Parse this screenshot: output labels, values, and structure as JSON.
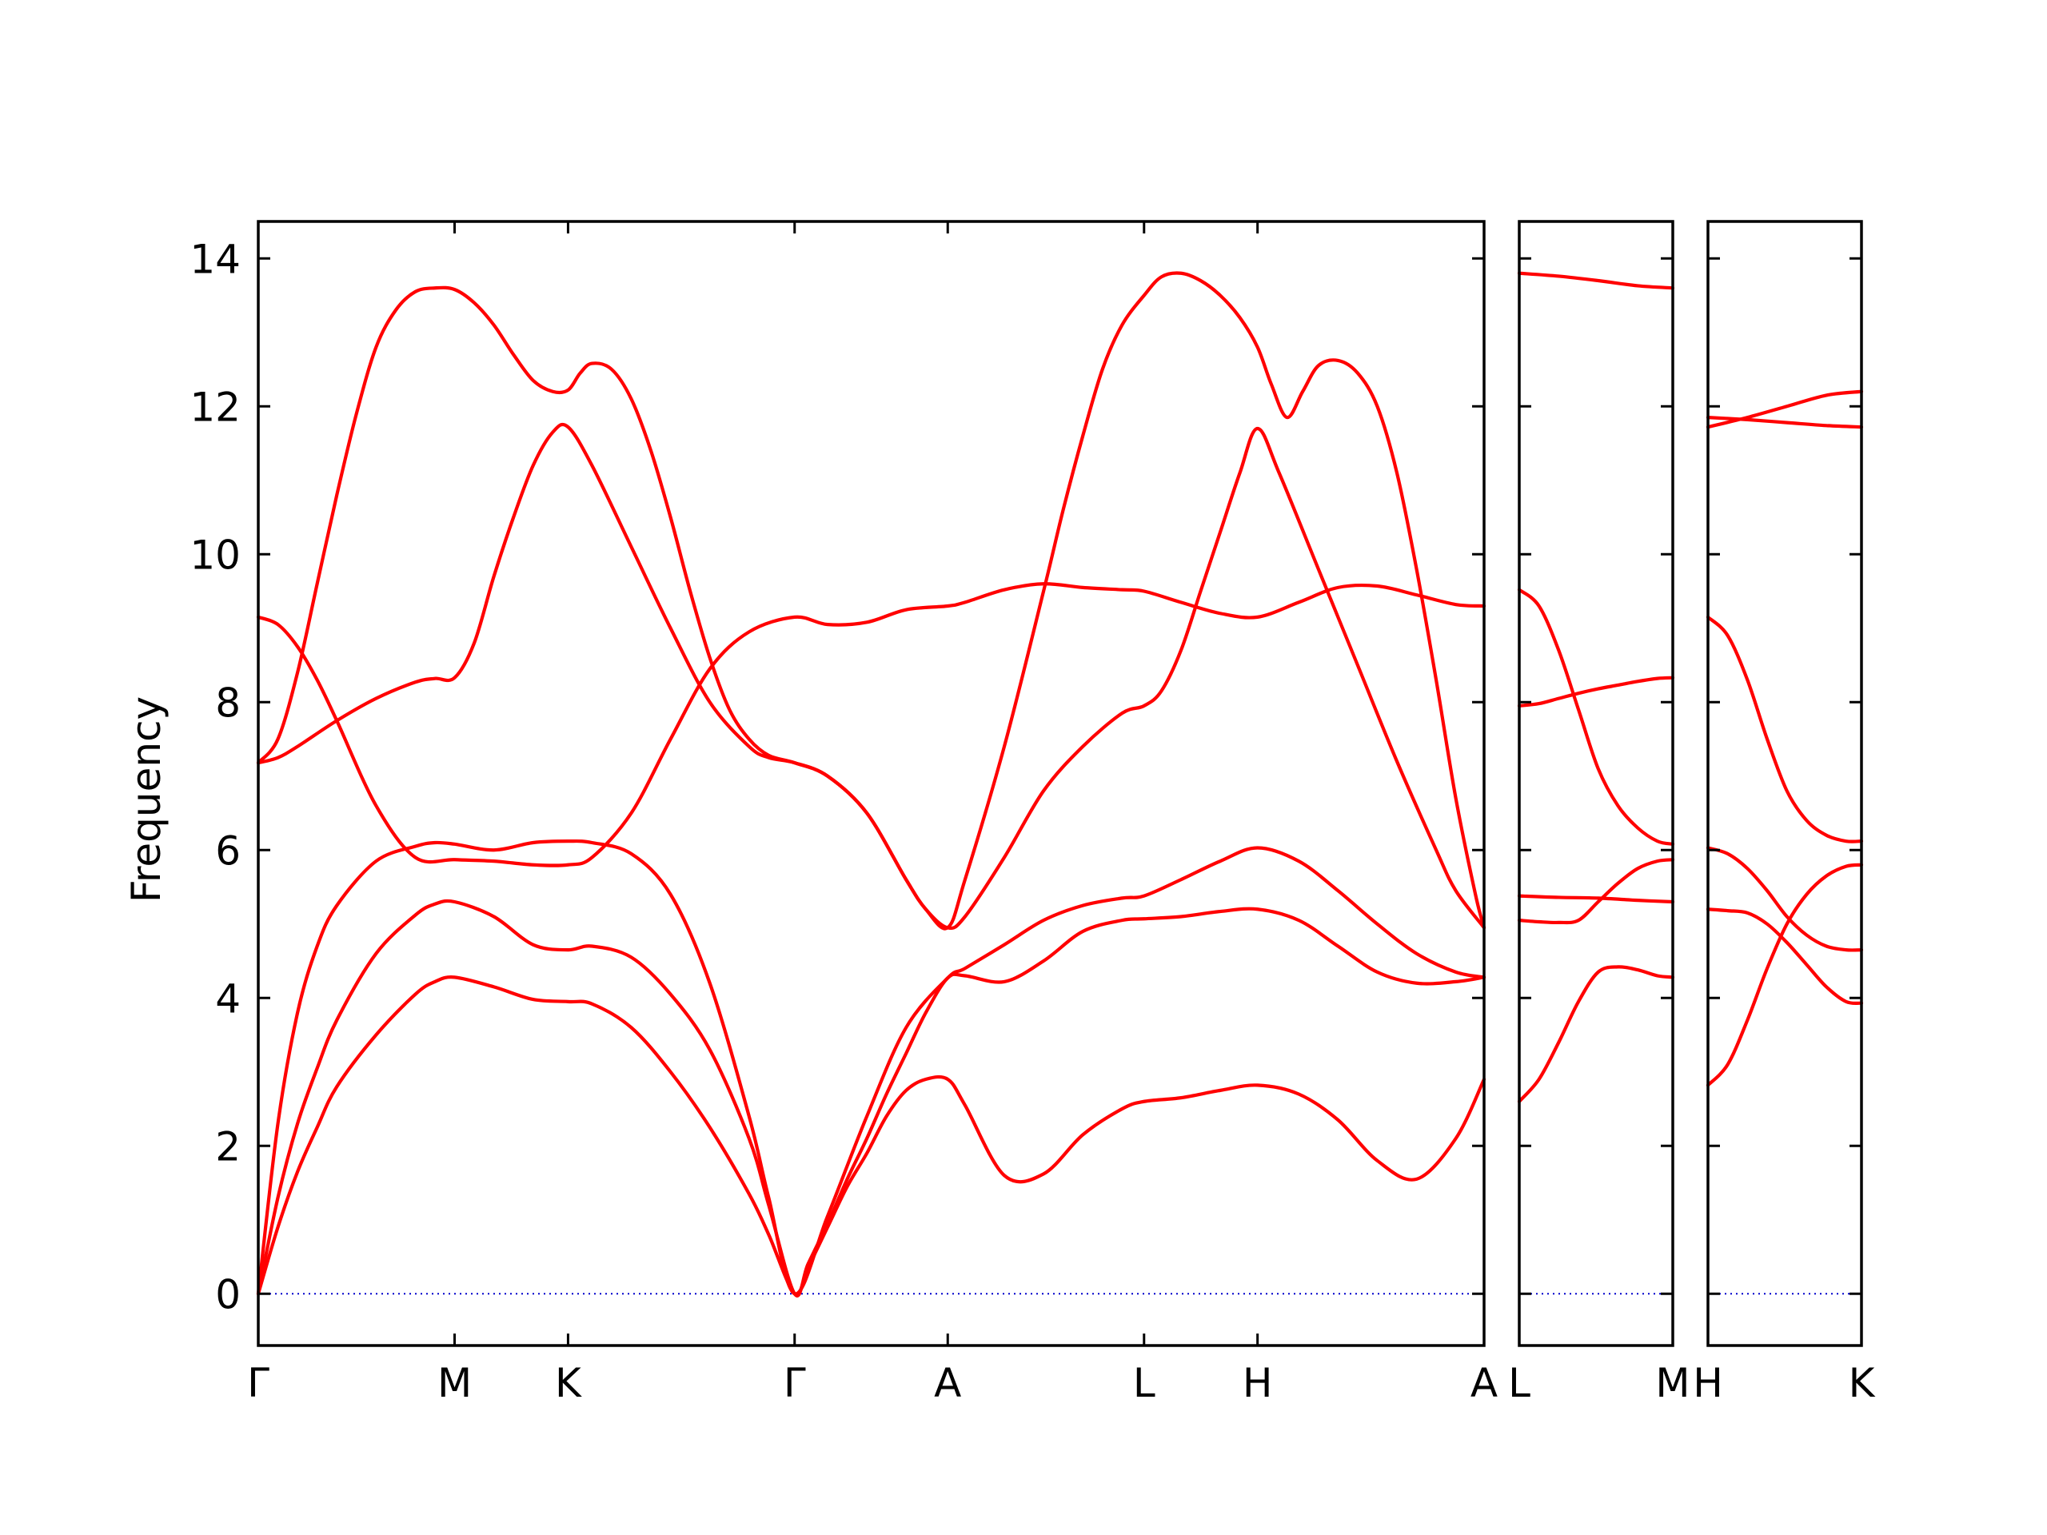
{
  "chart_data": {
    "type": "line",
    "title": "",
    "xlabel": "",
    "ylabel": "Frequency",
    "ylim": [
      -0.7,
      14.5
    ],
    "yticks": [
      0,
      2,
      4,
      6,
      8,
      10,
      12,
      14
    ],
    "grid": false,
    "legend": "none",
    "colors": {
      "band": "#ff0000",
      "zero_line": "#0000cc",
      "axes": "#000000"
    },
    "panels": [
      {
        "kpoints": [
          {
            "label": "Γ",
            "x": 0
          },
          {
            "label": "M",
            "x": 0.5
          },
          {
            "label": "K",
            "x": 0.789
          },
          {
            "label": "Γ",
            "x": 1.366
          },
          {
            "label": "A",
            "x": 1.756
          },
          {
            "label": "L",
            "x": 2.256
          },
          {
            "label": "H",
            "x": 2.545
          },
          {
            "label": "A",
            "x": 3.122
          }
        ],
        "series": [
          {
            "x": [
              0,
              0.05,
              0.1,
              0.15,
              0.2,
              0.3,
              0.4,
              0.45,
              0.5,
              0.6,
              0.7,
              0.789,
              0.85,
              0.95,
              1.05,
              1.15,
              1.25,
              1.3,
              1.366,
              1.4,
              1.45,
              1.5,
              1.55,
              1.6,
              1.65,
              1.7,
              1.756,
              1.8,
              1.9,
              2.0,
              2.1,
              2.2,
              2.256,
              2.35,
              2.45,
              2.545,
              2.65,
              2.75,
              2.85,
              2.95,
              3.05,
              3.122
            ],
            "y": [
              0,
              0.9,
              1.65,
              2.25,
              2.8,
              3.5,
              4.05,
              4.22,
              4.28,
              4.15,
              3.98,
              3.95,
              3.92,
              3.6,
              3.0,
              2.25,
              1.35,
              0.8,
              0,
              0.35,
              0.9,
              1.45,
              1.9,
              2.4,
              2.75,
              2.9,
              2.9,
              2.55,
              1.6,
              1.62,
              2.15,
              2.5,
              2.6,
              2.65,
              2.75,
              2.82,
              2.7,
              2.35,
              1.8,
              1.55,
              2.1,
              2.9
            ]
          },
          {
            "x": [
              0,
              0.05,
              0.1,
              0.15,
              0.2,
              0.3,
              0.4,
              0.45,
              0.5,
              0.6,
              0.7,
              0.789,
              0.85,
              0.95,
              1.05,
              1.15,
              1.25,
              1.3,
              1.366,
              1.4,
              1.45,
              1.5,
              1.55,
              1.6,
              1.65,
              1.7,
              1.756,
              1.8,
              1.9,
              2.0,
              2.1,
              2.2,
              2.256,
              2.35,
              2.45,
              2.545,
              2.65,
              2.75,
              2.85,
              2.95,
              3.05,
              3.122
            ],
            "y": [
              0,
              1.3,
              2.3,
              3.05,
              3.7,
              4.6,
              5.12,
              5.27,
              5.3,
              5.1,
              4.72,
              4.65,
              4.7,
              4.55,
              4.05,
              3.3,
              2.1,
              1.2,
              0,
              0.4,
              0.95,
              1.55,
              2.1,
              2.7,
              3.25,
              3.8,
              4.27,
              4.3,
              4.22,
              4.5,
              4.9,
              5.05,
              5.07,
              5.1,
              5.17,
              5.2,
              5.05,
              4.7,
              4.35,
              4.2,
              4.22,
              4.28
            ]
          },
          {
            "x": [
              0,
              0.05,
              0.1,
              0.15,
              0.2,
              0.3,
              0.4,
              0.45,
              0.5,
              0.6,
              0.7,
              0.789,
              0.85,
              0.95,
              1.05,
              1.15,
              1.25,
              1.3,
              1.366,
              1.45,
              1.55,
              1.65,
              1.756,
              1.8,
              1.9,
              2.0,
              2.1,
              2.2,
              2.256,
              2.35,
              2.45,
              2.545,
              2.65,
              2.75,
              2.85,
              2.95,
              3.05,
              3.122
            ],
            "y": [
              0,
              2.3,
              3.8,
              4.7,
              5.25,
              5.85,
              6.05,
              6.1,
              6.08,
              6.0,
              6.1,
              6.12,
              6.1,
              5.95,
              5.4,
              4.2,
              2.4,
              1.3,
              0,
              1.05,
              2.4,
              3.6,
              4.27,
              4.4,
              4.72,
              5.05,
              5.25,
              5.35,
              5.38,
              5.6,
              5.85,
              6.03,
              5.85,
              5.45,
              5.0,
              4.6,
              4.35,
              4.28
            ]
          },
          {
            "x": [
              0,
              0.05,
              0.1,
              0.15,
              0.2,
              0.3,
              0.4,
              0.5,
              0.6,
              0.7,
              0.789,
              0.85,
              0.95,
              1.05,
              1.15,
              1.25,
              1.366,
              1.45,
              1.55,
              1.65,
              1.756,
              1.8,
              1.9,
              2.0,
              2.1,
              2.2,
              2.256,
              2.35,
              2.45,
              2.545,
              2.65,
              2.75,
              2.85,
              2.95,
              3.05,
              3.122
            ],
            "y": [
              9.15,
              9.05,
              8.75,
              8.3,
              7.75,
              6.6,
              5.9,
              5.87,
              5.85,
              5.8,
              5.8,
              5.9,
              6.5,
              7.5,
              8.45,
              8.95,
              9.15,
              9.05,
              9.08,
              9.25,
              9.3,
              9.35,
              9.52,
              9.6,
              9.55,
              9.52,
              9.5,
              9.35,
              9.2,
              9.15,
              9.35,
              9.55,
              9.57,
              9.45,
              9.32,
              9.3
            ]
          },
          {
            "x": [
              0,
              0.05,
              0.1,
              0.2,
              0.3,
              0.4,
              0.45,
              0.5,
              0.55,
              0.6,
              0.65,
              0.7,
              0.75,
              0.789,
              0.85,
              0.95,
              1.05,
              1.15,
              1.25,
              1.3,
              1.366,
              1.45,
              1.55,
              1.65,
              1.7,
              1.756,
              1.8,
              1.9,
              2.0,
              2.1,
              2.2,
              2.256,
              2.3,
              2.35,
              2.4,
              2.45,
              2.5,
              2.545,
              2.6,
              2.7,
              2.8,
              2.9,
              3.0,
              3.05,
              3.122
            ],
            "y": [
              7.18,
              7.25,
              7.4,
              7.75,
              8.05,
              8.27,
              8.32,
              8.33,
              8.8,
              9.7,
              10.5,
              11.2,
              11.65,
              11.72,
              11.2,
              10.1,
              9.0,
              8.0,
              7.4,
              7.25,
              7.18,
              7.0,
              6.5,
              5.6,
              5.2,
              4.95,
              5.1,
              5.9,
              6.8,
              7.4,
              7.85,
              7.95,
              8.15,
              8.7,
              9.5,
              10.3,
              11.1,
              11.7,
              11.1,
              9.8,
              8.5,
              7.2,
              6.0,
              5.45,
              4.95
            ]
          },
          {
            "x": [
              0,
              0.05,
              0.1,
              0.15,
              0.2,
              0.25,
              0.3,
              0.35,
              0.4,
              0.45,
              0.5,
              0.55,
              0.6,
              0.65,
              0.7,
              0.75,
              0.789,
              0.82,
              0.85,
              0.9,
              0.95,
              1.0,
              1.05,
              1.1,
              1.15,
              1.2,
              1.25,
              1.3,
              1.366,
              1.45,
              1.55,
              1.65,
              1.7,
              1.756,
              1.8,
              1.9,
              2.0,
              2.05,
              2.1,
              2.15,
              2.2,
              2.256,
              2.3,
              2.35,
              2.4,
              2.45,
              2.5,
              2.545,
              2.58,
              2.62,
              2.66,
              2.7,
              2.75,
              2.8,
              2.85,
              2.9,
              2.95,
              3.0,
              3.05,
              3.1,
              3.122
            ],
            "y": [
              7.18,
              7.5,
              8.4,
              9.6,
              10.8,
              11.9,
              12.8,
              13.3,
              13.55,
              13.6,
              13.58,
              13.4,
              13.1,
              12.7,
              12.35,
              12.2,
              12.22,
              12.45,
              12.58,
              12.5,
              12.1,
              11.4,
              10.5,
              9.5,
              8.6,
              7.9,
              7.5,
              7.28,
              7.18,
              7.0,
              6.5,
              5.6,
              5.2,
              4.95,
              5.6,
              7.4,
              9.5,
              10.6,
              11.6,
              12.5,
              13.1,
              13.5,
              13.75,
              13.8,
              13.7,
              13.5,
              13.2,
              12.8,
              12.3,
              11.85,
              12.2,
              12.55,
              12.62,
              12.45,
              12.0,
              11.1,
              9.8,
              8.3,
              6.7,
              5.4,
              4.95
            ]
          }
        ]
      },
      {
        "kpoints": [
          {
            "label": "L",
            "x": 0
          },
          {
            "label": "M",
            "x": 0.389
          }
        ],
        "series": [
          {
            "x": [
              0,
              0.05,
              0.1,
              0.15,
              0.2,
              0.25,
              0.3,
              0.35,
              0.389
            ],
            "y": [
              2.6,
              2.9,
              3.4,
              3.95,
              4.35,
              4.42,
              4.38,
              4.3,
              4.28
            ]
          },
          {
            "x": [
              0,
              0.05,
              0.1,
              0.15,
              0.2,
              0.25,
              0.3,
              0.35,
              0.389
            ],
            "y": [
              5.05,
              5.03,
              5.02,
              5.05,
              5.3,
              5.55,
              5.75,
              5.85,
              5.87
            ]
          },
          {
            "x": [
              0,
              0.1,
              0.2,
              0.3,
              0.389
            ],
            "y": [
              5.38,
              5.36,
              5.35,
              5.32,
              5.3
            ]
          },
          {
            "x": [
              0,
              0.05,
              0.1,
              0.15,
              0.2,
              0.25,
              0.3,
              0.35,
              0.389
            ],
            "y": [
              7.95,
              7.98,
              8.05,
              8.12,
              8.18,
              8.23,
              8.28,
              8.32,
              8.33
            ]
          },
          {
            "x": [
              0,
              0.05,
              0.1,
              0.15,
              0.2,
              0.25,
              0.3,
              0.35,
              0.389
            ],
            "y": [
              9.52,
              9.3,
              8.7,
              7.9,
              7.1,
              6.6,
              6.3,
              6.12,
              6.08
            ]
          },
          {
            "x": [
              0,
              0.1,
              0.2,
              0.3,
              0.389
            ],
            "y": [
              13.8,
              13.76,
              13.7,
              13.63,
              13.6
            ]
          }
        ]
      },
      {
        "kpoints": [
          {
            "label": "H",
            "x": 0
          },
          {
            "label": "K",
            "x": 0.389
          }
        ],
        "series": [
          {
            "x": [
              0,
              0.05,
              0.1,
              0.15,
              0.2,
              0.25,
              0.3,
              0.35,
              0.389
            ],
            "y": [
              2.82,
              3.1,
              3.7,
              4.4,
              5.0,
              5.4,
              5.65,
              5.78,
              5.8
            ]
          },
          {
            "x": [
              0,
              0.05,
              0.1,
              0.15,
              0.2,
              0.25,
              0.3,
              0.35,
              0.389
            ],
            "y": [
              5.2,
              5.18,
              5.15,
              5.0,
              4.75,
              4.45,
              4.15,
              3.95,
              3.93
            ]
          },
          {
            "x": [
              0,
              0.05,
              0.1,
              0.15,
              0.2,
              0.25,
              0.3,
              0.35,
              0.389
            ],
            "y": [
              6.03,
              5.95,
              5.75,
              5.45,
              5.1,
              4.85,
              4.7,
              4.65,
              4.65
            ]
          },
          {
            "x": [
              0,
              0.05,
              0.1,
              0.15,
              0.2,
              0.25,
              0.3,
              0.35,
              0.389
            ],
            "y": [
              9.15,
              8.9,
              8.3,
              7.5,
              6.8,
              6.4,
              6.2,
              6.12,
              6.12
            ]
          },
          {
            "x": [
              0,
              0.1,
              0.2,
              0.3,
              0.389
            ],
            "y": [
              11.72,
              11.85,
              12.0,
              12.15,
              12.2
            ]
          },
          {
            "x": [
              0,
              0.1,
              0.2,
              0.3,
              0.389
            ],
            "y": [
              11.85,
              11.82,
              11.78,
              11.74,
              11.72
            ]
          }
        ]
      }
    ]
  }
}
